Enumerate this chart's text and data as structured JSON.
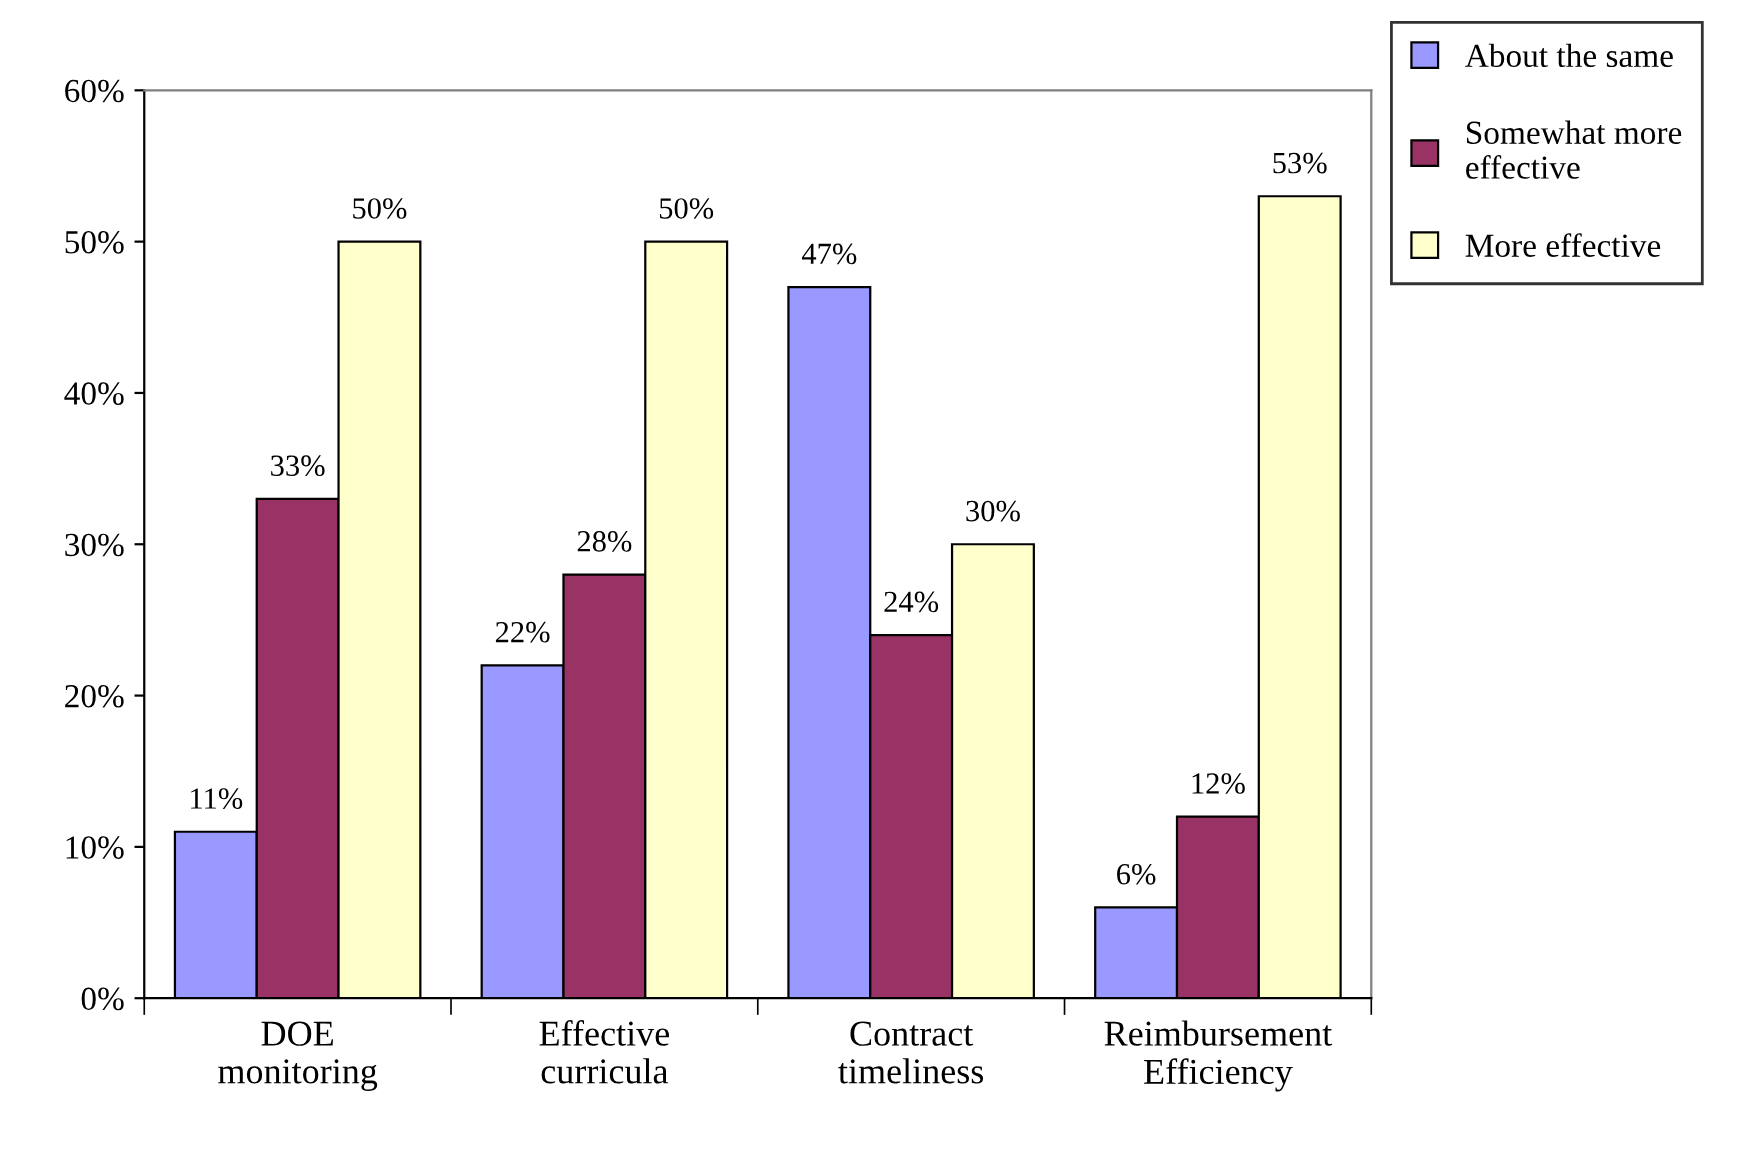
{
  "chart_data": {
    "type": "bar",
    "categories": [
      "DOE\nmonitoring",
      "Effective\ncurricula",
      "Contract\ntimeliness",
      "Reimbursement\nEfficiency"
    ],
    "series": [
      {
        "name": "About the same",
        "color": "#9999ff",
        "values": [
          11,
          22,
          47,
          6
        ],
        "value_labels": [
          "11%",
          "22%",
          "47%",
          "6%"
        ]
      },
      {
        "name": "Somewhat more\neffective",
        "color": "#993366",
        "values": [
          33,
          28,
          24,
          12
        ],
        "value_labels": [
          "33%",
          "28%",
          "24%",
          "12%"
        ]
      },
      {
        "name": "More effective",
        "color": "#ffffcc",
        "values": [
          50,
          50,
          30,
          53
        ],
        "value_labels": [
          "50%",
          "50%",
          "30%",
          "53%"
        ]
      }
    ],
    "ylim": [
      0,
      60
    ],
    "yticks": [
      {
        "value": 0,
        "label": "0%"
      },
      {
        "value": 10,
        "label": "10%"
      },
      {
        "value": 20,
        "label": "20%"
      },
      {
        "value": 30,
        "label": "30%"
      },
      {
        "value": 40,
        "label": "40%"
      },
      {
        "value": 50,
        "label": "50%"
      },
      {
        "value": 60,
        "label": "60%"
      }
    ],
    "grid": false,
    "legend": "top right"
  }
}
